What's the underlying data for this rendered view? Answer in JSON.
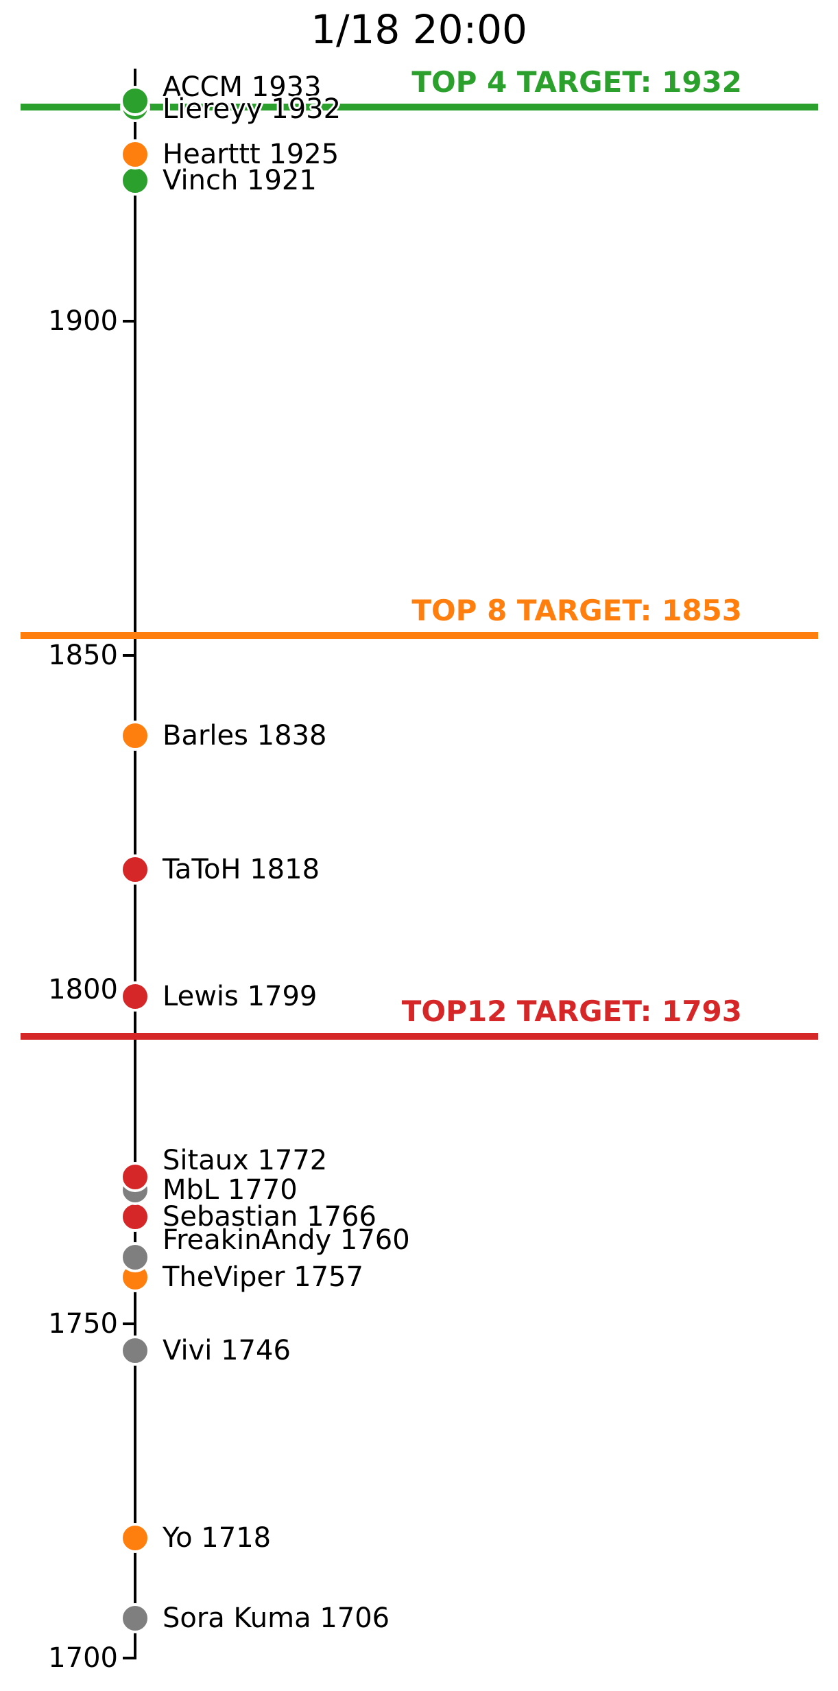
{
  "chart_data": {
    "type": "scatter",
    "title": "1/18 20:00",
    "orientation": "vertical-number-line",
    "grid": false,
    "legend": false,
    "y_axis": {
      "ticks": [
        1900,
        1850,
        1800,
        1750,
        1700
      ],
      "range": [
        1700,
        1938
      ]
    },
    "palette": {
      "green": "#2ca02c",
      "orange": "#ff7f0e",
      "red": "#d62728",
      "gray": "#7f7f7f",
      "axis": "#000000",
      "background": "#ffffff"
    },
    "players": [
      {
        "name": "ACCM",
        "rating": 1933,
        "color": "green",
        "label_dy": -20
      },
      {
        "name": "Liereyy",
        "rating": 1932,
        "color": "green",
        "label_dy": 3
      },
      {
        "name": "Hearttt",
        "rating": 1925,
        "color": "orange",
        "label_dy": 0
      },
      {
        "name": "Vinch",
        "rating": 1921,
        "color": "green",
        "label_dy": 0
      },
      {
        "name": "Barles",
        "rating": 1838,
        "color": "orange",
        "label_dy": 0
      },
      {
        "name": "TaToH",
        "rating": 1818,
        "color": "red",
        "label_dy": 0
      },
      {
        "name": "Lewis",
        "rating": 1799,
        "color": "red",
        "label_dy": 0
      },
      {
        "name": "Sitaux",
        "rating": 1772,
        "color": "red",
        "label_dy": -24
      },
      {
        "name": "MbL",
        "rating": 1770,
        "color": "gray",
        "label_dy": 0
      },
      {
        "name": "Sebastian",
        "rating": 1766,
        "color": "red",
        "label_dy": 0
      },
      {
        "name": "FreakinAndy",
        "rating": 1760,
        "color": "gray",
        "label_dy": -25
      },
      {
        "name": "TheViper",
        "rating": 1757,
        "color": "orange",
        "label_dy": 0
      },
      {
        "name": "Vivi",
        "rating": 1746,
        "color": "gray",
        "label_dy": 0
      },
      {
        "name": "Yo",
        "rating": 1718,
        "color": "orange",
        "label_dy": 0
      },
      {
        "name": "Sora Kuma",
        "rating": 1706,
        "color": "gray",
        "label_dy": 0
      }
    ],
    "targets": [
      {
        "label": "TOP 4 TARGET: 1932",
        "value": 1932,
        "color": "green"
      },
      {
        "label": "TOP 8 TARGET: 1853",
        "value": 1853,
        "color": "orange"
      },
      {
        "label": "TOP12 TARGET: 1793",
        "value": 1793,
        "color": "red"
      }
    ]
  }
}
